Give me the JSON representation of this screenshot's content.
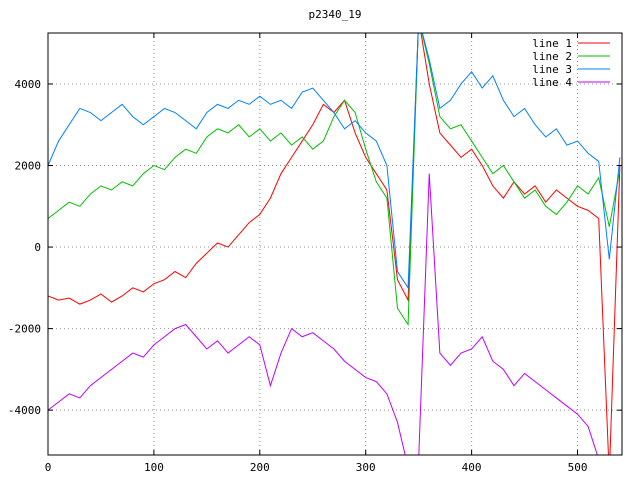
{
  "chart_data": {
    "type": "line",
    "title": "p2340_19",
    "xlabel": "",
    "ylabel": "",
    "xlim": [
      0,
      542
    ],
    "ylim": [
      -5100,
      5250
    ],
    "xticks": [
      0,
      100,
      200,
      300,
      400,
      500
    ],
    "yticks": [
      -4000,
      -2000,
      0,
      2000,
      4000
    ],
    "grid": true,
    "grid_style": "dotted",
    "legend_position": "top-right-inside",
    "border_color": "#000000",
    "grid_color": "#909090",
    "background_color": "#ffffff",
    "x": [
      0,
      10,
      20,
      30,
      40,
      50,
      60,
      70,
      80,
      90,
      100,
      110,
      120,
      130,
      140,
      150,
      160,
      170,
      180,
      190,
      200,
      210,
      220,
      230,
      240,
      250,
      260,
      270,
      280,
      290,
      300,
      310,
      320,
      330,
      340,
      350,
      360,
      370,
      380,
      390,
      400,
      410,
      420,
      430,
      440,
      450,
      460,
      470,
      480,
      490,
      500,
      510,
      520,
      530,
      540
    ],
    "series": [
      {
        "name": "line 1",
        "color": "#ff0000",
        "values": [
          -1200,
          -1300,
          -1250,
          -1400,
          -1300,
          -1150,
          -1350,
          -1200,
          -1000,
          -1100,
          -900,
          -800,
          -600,
          -750,
          -400,
          -150,
          100,
          0,
          300,
          600,
          800,
          1200,
          1800,
          2200,
          2600,
          3000,
          3500,
          3300,
          3600,
          2800,
          2200,
          1800,
          1400,
          -800,
          -1300,
          5600,
          4000,
          2800,
          2500,
          2200,
          2400,
          2000,
          1500,
          1200,
          1600,
          1300,
          1500,
          1100,
          1400,
          1200,
          1000,
          900,
          700,
          -5600,
          2000
        ]
      },
      {
        "name": "line 2",
        "color": "#00c000",
        "values": [
          700,
          900,
          1100,
          1000,
          1300,
          1500,
          1400,
          1600,
          1500,
          1800,
          2000,
          1900,
          2200,
          2400,
          2300,
          2700,
          2900,
          2800,
          3000,
          2700,
          2900,
          2600,
          2800,
          2500,
          2700,
          2400,
          2600,
          3200,
          3600,
          3300,
          2400,
          1600,
          1200,
          -1500,
          -1900,
          5600,
          4500,
          3200,
          2900,
          3000,
          2600,
          2200,
          1800,
          2000,
          1600,
          1200,
          1400,
          1000,
          800,
          1100,
          1500,
          1300,
          1700,
          500,
          1900
        ]
      },
      {
        "name": "line 3",
        "color": "#0080ff",
        "values": [
          2000,
          2600,
          3000,
          3400,
          3300,
          3100,
          3300,
          3500,
          3200,
          3000,
          3200,
          3400,
          3300,
          3100,
          2900,
          3300,
          3500,
          3400,
          3600,
          3500,
          3700,
          3500,
          3600,
          3400,
          3800,
          3900,
          3600,
          3300,
          2900,
          3100,
          2800,
          2600,
          2000,
          -600,
          -1000,
          5600,
          4600,
          3400,
          3600,
          4000,
          4300,
          3900,
          4200,
          3600,
          3200,
          3400,
          3000,
          2700,
          2900,
          2500,
          2600,
          2300,
          2100,
          -300,
          2200
        ]
      },
      {
        "name": "line 4",
        "color": "#c000ff",
        "values": [
          -4000,
          -3800,
          -3600,
          -3700,
          -3400,
          -3200,
          -3000,
          -2800,
          -2600,
          -2700,
          -2400,
          -2200,
          -2000,
          -1900,
          -2200,
          -2500,
          -2300,
          -2600,
          -2400,
          -2200,
          -2400,
          -3400,
          -2600,
          -2000,
          -2200,
          -2100,
          -2300,
          -2500,
          -2800,
          -3000,
          -3200,
          -3300,
          -3600,
          -4300,
          -5400,
          -5200,
          1800,
          -2600,
          -2900,
          -2600,
          -2500,
          -2200,
          -2800,
          -3000,
          -3400,
          -3100,
          -3300,
          -3500,
          -3700,
          -3900,
          -4100,
          -4400,
          -5200,
          -5400,
          -5300
        ]
      }
    ]
  }
}
